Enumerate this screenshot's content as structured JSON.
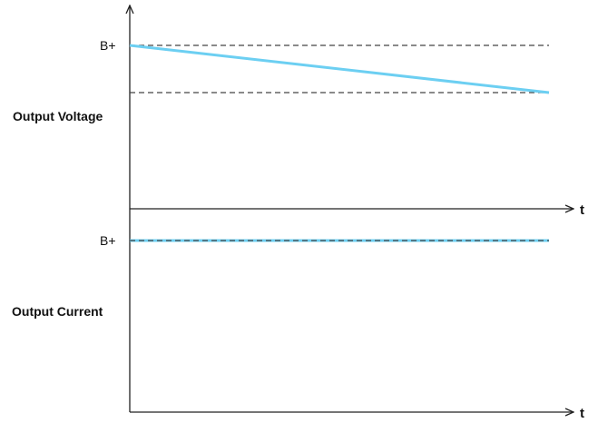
{
  "voltage_panel": {
    "label": "Output Voltage",
    "level_label": "B+",
    "time_label": "t"
  },
  "current_panel": {
    "label": "Output Current",
    "level_label": "B+",
    "time_label": "t"
  },
  "colors": {
    "axis": "#222222",
    "dashed_reference": "#444444",
    "signal": "#6ccff2"
  }
}
